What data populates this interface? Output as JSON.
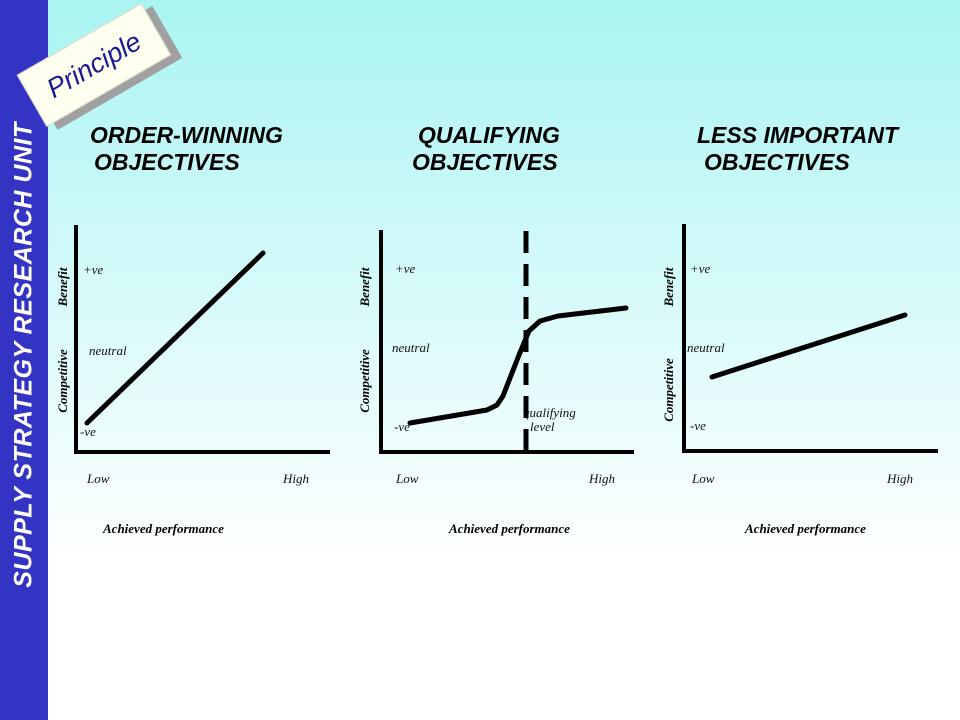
{
  "sidebar": {
    "title": "SUPPLY STRATEGY RESEARCH UNIT"
  },
  "badge": {
    "label": "Principle"
  },
  "panels": [
    {
      "heading_line1": "ORDER-WINNING",
      "heading_line2": "OBJECTIVES",
      "y_labels": [
        "Competitive",
        "Benefit"
      ],
      "levels": [
        "+ve",
        "neutral",
        "-ve"
      ],
      "x_ticks": [
        "Low",
        "High"
      ],
      "x_title": "Achieved performance"
    },
    {
      "heading_line1": "QUALIFYING",
      "heading_line2": "OBJECTIVES",
      "y_labels": [
        "Competitive",
        "Benefit"
      ],
      "levels": [
        "+ve",
        "neutral",
        "-ve"
      ],
      "x_ticks": [
        "Low",
        "High"
      ],
      "x_title": "Achieved performance",
      "annotation_line1": "qualifying",
      "annotation_line2": "level"
    },
    {
      "heading_line1": "LESS IMPORTANT",
      "heading_line2": "OBJECTIVES",
      "y_labels": [
        "Competitive",
        "Benefit"
      ],
      "levels": [
        "+ve",
        "neutral",
        "-ve"
      ],
      "x_ticks": [
        "Low",
        "High"
      ],
      "x_title": "Achieved performance"
    }
  ]
}
